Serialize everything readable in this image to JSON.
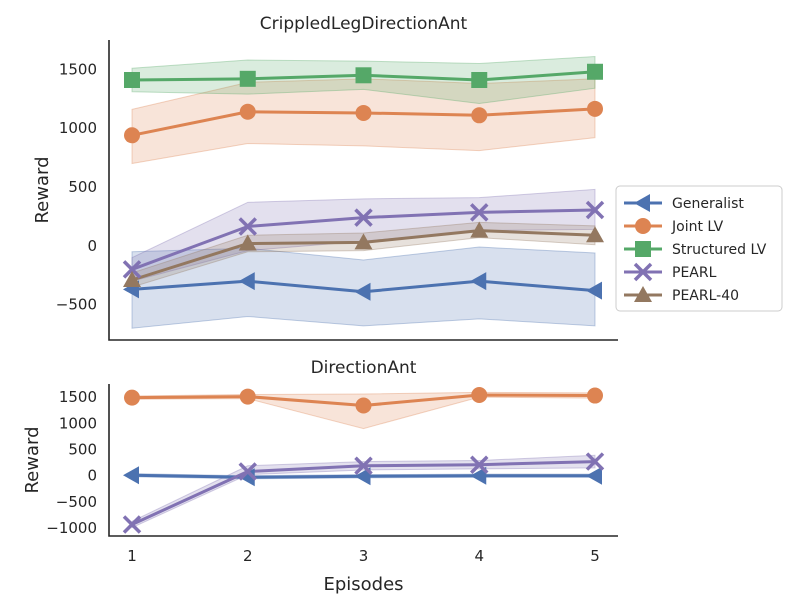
{
  "chart_data": [
    {
      "type": "line",
      "title": "CrippledLegDirectionAnt",
      "xlabel": "",
      "ylabel": "Reward",
      "x": [
        1,
        2,
        3,
        4,
        5
      ],
      "ylim": [
        -800,
        1750
      ],
      "yticks": [
        -500,
        0,
        500,
        1000,
        1500
      ],
      "ytick_labels": [
        "−500",
        "0",
        "500",
        "1000",
        "1500"
      ],
      "series": [
        {
          "name": "Generalist",
          "color": "#4c72b0",
          "marker": "triangle-left",
          "values": [
            -370,
            -300,
            -390,
            -300,
            -380
          ],
          "band_low": [
            -700,
            -600,
            -680,
            -620,
            -680
          ],
          "band_high": [
            -50,
            -20,
            -120,
            -10,
            -60
          ]
        },
        {
          "name": "Joint LV",
          "color": "#dd8452",
          "marker": "circle",
          "values": [
            940,
            1140,
            1130,
            1110,
            1165
          ],
          "band_low": [
            700,
            870,
            850,
            810,
            920
          ],
          "band_high": [
            1160,
            1390,
            1420,
            1380,
            1420
          ]
        },
        {
          "name": "Structured LV",
          "color": "#55a868",
          "marker": "square",
          "values": [
            1410,
            1420,
            1450,
            1410,
            1480
          ],
          "band_low": [
            1310,
            1290,
            1330,
            1210,
            1340
          ],
          "band_high": [
            1510,
            1580,
            1570,
            1550,
            1610
          ]
        },
        {
          "name": "PEARL",
          "color": "#8172b3",
          "marker": "x",
          "values": [
            -200,
            165,
            240,
            285,
            305
          ],
          "band_low": [
            -300,
            -40,
            40,
            130,
            140
          ],
          "band_high": [
            -100,
            370,
            400,
            410,
            480
          ]
        },
        {
          "name": "PEARL-40",
          "color": "#937860",
          "marker": "triangle-up",
          "values": [
            -290,
            20,
            30,
            130,
            90
          ],
          "band_low": [
            -350,
            -50,
            -40,
            70,
            10
          ],
          "band_high": [
            -230,
            90,
            110,
            200,
            170
          ]
        }
      ],
      "legend": {
        "placement": "right"
      }
    },
    {
      "type": "line",
      "title": "DirectionAnt",
      "xlabel": "Episodes",
      "ylabel": "Reward",
      "x": [
        1,
        2,
        3,
        4,
        5
      ],
      "xtick_labels": [
        "1",
        "2",
        "3",
        "4",
        "5"
      ],
      "ylim": [
        -1150,
        1750
      ],
      "yticks": [
        -1000,
        -500,
        0,
        500,
        1000,
        1500
      ],
      "ytick_labels": [
        "−1000",
        "−500",
        "0",
        "500",
        "1000",
        "1500"
      ],
      "series": [
        {
          "name": "Generalist",
          "color": "#4c72b0",
          "marker": "triangle-left",
          "values": [
            10,
            -30,
            -10,
            0,
            0
          ],
          "band_low": [
            -20,
            -60,
            -40,
            -30,
            -30
          ],
          "band_high": [
            40,
            0,
            20,
            30,
            30
          ]
        },
        {
          "name": "Joint LV",
          "color": "#dd8452",
          "marker": "circle",
          "values": [
            1490,
            1510,
            1340,
            1540,
            1530
          ],
          "band_low": [
            1460,
            1470,
            900,
            1500,
            1480
          ],
          "band_high": [
            1520,
            1550,
            1560,
            1590,
            1580
          ]
        },
        {
          "name": "PEARL",
          "color": "#8172b3",
          "marker": "x",
          "values": [
            -930,
            80,
            190,
            210,
            270
          ],
          "band_low": [
            -990,
            20,
            110,
            130,
            150
          ],
          "band_high": [
            -870,
            190,
            270,
            290,
            390
          ]
        }
      ]
    }
  ]
}
